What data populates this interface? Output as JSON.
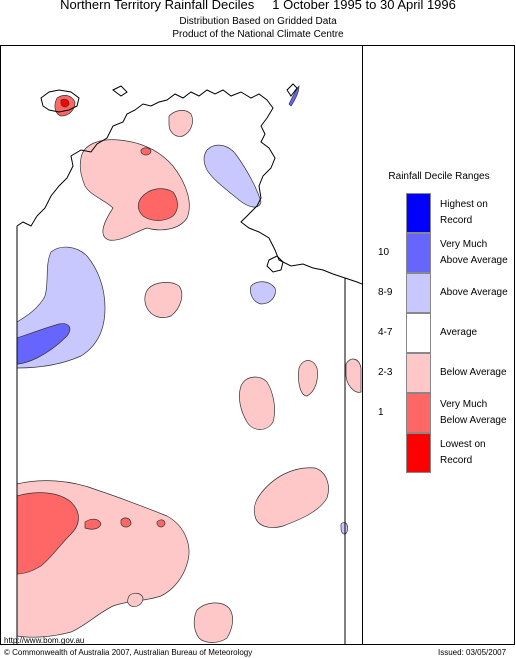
{
  "header": {
    "title": "Northern Territory Rainfall Deciles     1 October 1995 to 30 April 1996",
    "subtitle_1": "Distribution Based on Gridded Data",
    "subtitle_2": "Product of the National Climate Centre"
  },
  "legend": {
    "title": "Rainfall Decile Ranges",
    "items": [
      {
        "code": "",
        "label": "Highest on Record",
        "color": "#0000ff"
      },
      {
        "code": "10",
        "label": "Very Much Above Average",
        "color": "#6666ff"
      },
      {
        "code": "8-9",
        "label": "Above Average",
        "color": "#c8c8ff"
      },
      {
        "code": "4-7",
        "label": "Average",
        "color": "#ffffff"
      },
      {
        "code": "2-3",
        "label": "Below Average",
        "color": "#ffc8c8"
      },
      {
        "code": "1",
        "label": "Very Much Below Average",
        "color": "#ff6666"
      },
      {
        "code": "",
        "label": "Lowest on Record",
        "color": "#ff0000"
      }
    ]
  },
  "footer": {
    "url": "http://www.bom.gov.au",
    "copyright": "© Commonwealth of Australia 2007, Australian Bureau of Meteorology",
    "issued": "Issued: 03/05/2007"
  }
}
